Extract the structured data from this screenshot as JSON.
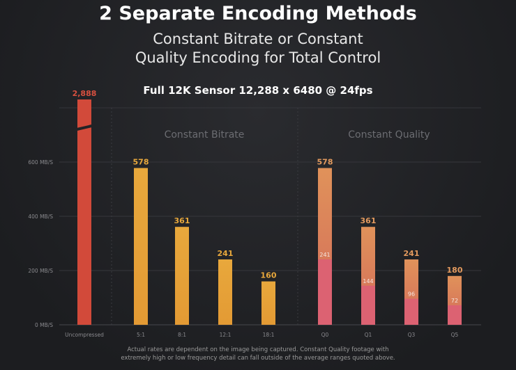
{
  "header": {
    "title": "2 Separate Encoding Methods",
    "subtitle_line1": "Constant Bitrate or Constant",
    "subtitle_line2": "Quality Encoding for Total Control",
    "chart_title": "Full 12K Sensor 12,288 x 6480 @ 24fps"
  },
  "footnote": {
    "line1": "Actual rates are dependent on the image being captured. Constant Quality footage with",
    "line2": "extremely high or low frequency detail can fall outside of the average ranges quoted above."
  },
  "chart_data": {
    "type": "bar",
    "title": "Full 12K Sensor 12,288 x 6480 @ 24fps",
    "ylabel": "MB/S",
    "ylim": [
      0,
      600
    ],
    "yticks": [
      {
        "v": 0,
        "label": "0 MB/S"
      },
      {
        "v": 200,
        "label": "200 MB/S"
      },
      {
        "v": 400,
        "label": "400 MB/S"
      },
      {
        "v": 600,
        "label": "600 MB/S"
      }
    ],
    "groups": [
      "Constant Bitrate",
      "Constant Quality"
    ],
    "categories": [
      "Uncompressed",
      "5:1",
      "8:1",
      "12:1",
      "18:1",
      "Q0",
      "Q1",
      "Q3",
      "Q5"
    ],
    "values": [
      2888,
      578,
      361,
      241,
      160,
      578,
      361,
      241,
      180
    ],
    "value_labels": [
      "2,888",
      "578",
      "361",
      "241",
      "160",
      "578",
      "361",
      "241",
      "180"
    ],
    "low_values": [
      null,
      null,
      null,
      null,
      null,
      241,
      144,
      96,
      72
    ],
    "broken_axis_bar": "Uncompressed",
    "colors": {
      "uncompressed": "#d24a3a",
      "bitrate": "#e8a53a",
      "quality_top": "#e0915a",
      "quality_low": "#dc6272"
    }
  }
}
